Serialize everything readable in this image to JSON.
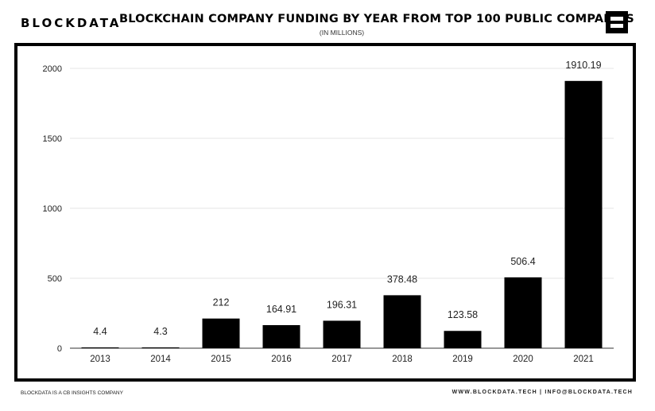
{
  "brand": "BLOCKDATA",
  "header": {
    "title": "BLOCKCHAIN COMPANY FUNDING BY YEAR FROM TOP 100 PUBLIC COMPANIES",
    "subtitle": "(IN MILLIONS)",
    "logo_icon": "blockdata-b-logo-icon"
  },
  "footer": {
    "left": "BLOCKDATA IS A CB INSIGHTS COMPANY",
    "right": "WWW.BLOCKDATA.TECH | INFO@BLOCKDATA.TECH"
  },
  "colors": {
    "bar": "#000000",
    "grid": "#e6e6e6",
    "frame": "#000000"
  },
  "chart_data": {
    "type": "bar",
    "title": "BLOCKCHAIN COMPANY FUNDING BY YEAR FROM TOP 100 PUBLIC COMPANIES",
    "subtitle": "(IN MILLIONS)",
    "xlabel": "",
    "ylabel": "",
    "categories": [
      "2013",
      "2014",
      "2015",
      "2016",
      "2017",
      "2018",
      "2019",
      "2020",
      "2021"
    ],
    "values": [
      4.4,
      4.3,
      212,
      164.91,
      196.31,
      378.48,
      123.58,
      506.4,
      1910.19
    ],
    "value_labels": [
      "4.4",
      "4.3",
      "212",
      "164.91",
      "196.31",
      "378.48",
      "123.58",
      "506.4",
      "1910.19"
    ],
    "ylim": [
      0,
      2000
    ],
    "yticks": [
      0,
      500,
      1000,
      1500,
      2000
    ],
    "grid": true,
    "legend": "none"
  }
}
